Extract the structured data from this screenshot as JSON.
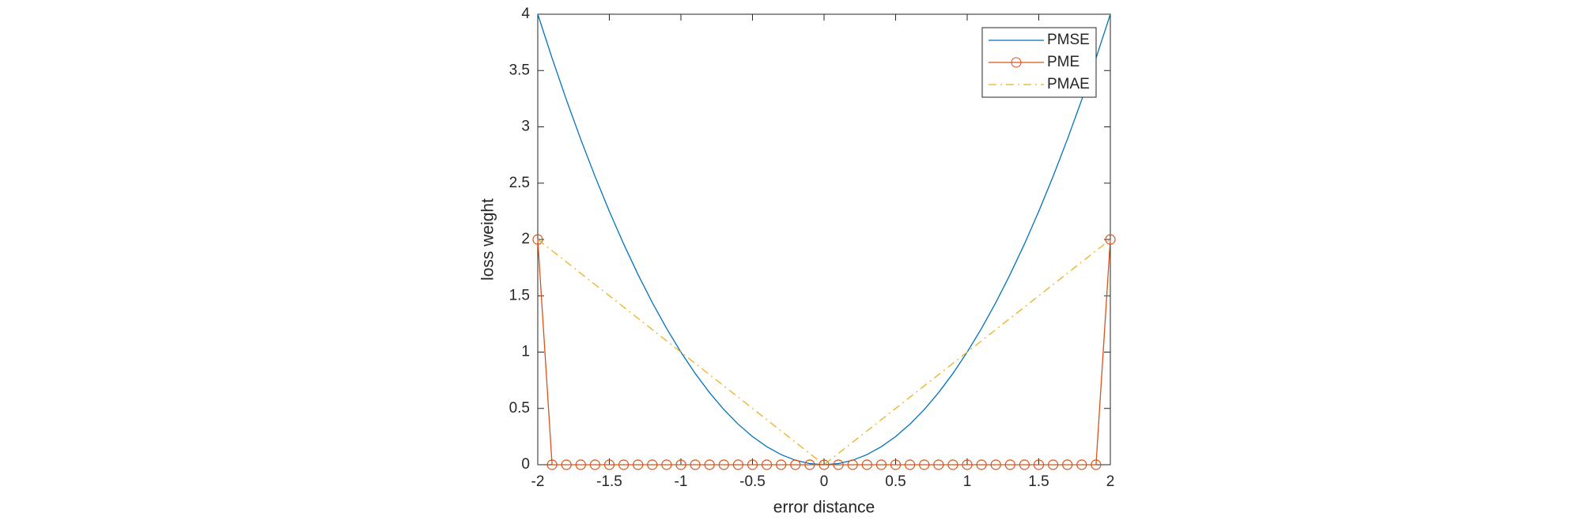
{
  "chart_data": {
    "type": "line",
    "xlabel": "error distance",
    "ylabel": "loss weight",
    "x": [
      -2,
      -1.9,
      -1.8,
      -1.7,
      -1.6,
      -1.5,
      -1.4,
      -1.3,
      -1.2,
      -1.1,
      -1,
      -0.9,
      -0.8,
      -0.7,
      -0.6,
      -0.5,
      -0.4,
      -0.3,
      -0.2,
      -0.1,
      0,
      0.1,
      0.2,
      0.3,
      0.4,
      0.5,
      0.6,
      0.7,
      0.8,
      0.9,
      1,
      1.1,
      1.2,
      1.3,
      1.4,
      1.5,
      1.6,
      1.7,
      1.8,
      1.9,
      2
    ],
    "series": [
      {
        "name": "PMSE",
        "color": "#0072BD",
        "line_style": "-",
        "values": [
          4,
          3.61,
          3.24,
          2.89,
          2.56,
          2.25,
          1.96,
          1.69,
          1.44,
          1.21,
          1,
          0.81,
          0.64,
          0.49,
          0.36,
          0.25,
          0.16,
          0.09,
          0.04,
          0.01,
          0,
          0.01,
          0.04,
          0.09,
          0.16,
          0.25,
          0.36,
          0.49,
          0.64,
          0.81,
          1,
          1.21,
          1.44,
          1.69,
          1.96,
          2.25,
          2.56,
          2.89,
          3.24,
          3.61,
          4
        ]
      },
      {
        "name": "PME",
        "color": "#D95319",
        "line_style": "-",
        "marker": "o",
        "values": [
          2,
          0,
          0,
          0,
          0,
          0,
          0,
          0,
          0,
          0,
          0,
          0,
          0,
          0,
          0,
          0,
          0,
          0,
          0,
          0,
          0,
          0,
          0,
          0,
          0,
          0,
          0,
          0,
          0,
          0,
          0,
          0,
          0,
          0,
          0,
          0,
          0,
          0,
          0,
          0,
          2
        ]
      },
      {
        "name": "PMAE",
        "color": "#EDB120",
        "line_style": "-.",
        "values": [
          2,
          1.9,
          1.8,
          1.7,
          1.6,
          1.5,
          1.4,
          1.3,
          1.2,
          1.1,
          1,
          0.9,
          0.8,
          0.7,
          0.6,
          0.5,
          0.4,
          0.3,
          0.2,
          0.1,
          0,
          0.1,
          0.2,
          0.3,
          0.4,
          0.5,
          0.6,
          0.7,
          0.8,
          0.9,
          1,
          1.1,
          1.2,
          1.3,
          1.4,
          1.5,
          1.6,
          1.7,
          1.8,
          1.9,
          2
        ]
      }
    ],
    "xlim": [
      -2,
      2
    ],
    "xticks": [
      -2,
      -1.5,
      -1,
      -0.5,
      0,
      0.5,
      1,
      1.5,
      2
    ],
    "ylim": [
      0,
      4
    ],
    "yticks": [
      0,
      0.5,
      1,
      1.5,
      2,
      2.5,
      3,
      3.5,
      4
    ],
    "grid": false,
    "legend": "northeast"
  }
}
